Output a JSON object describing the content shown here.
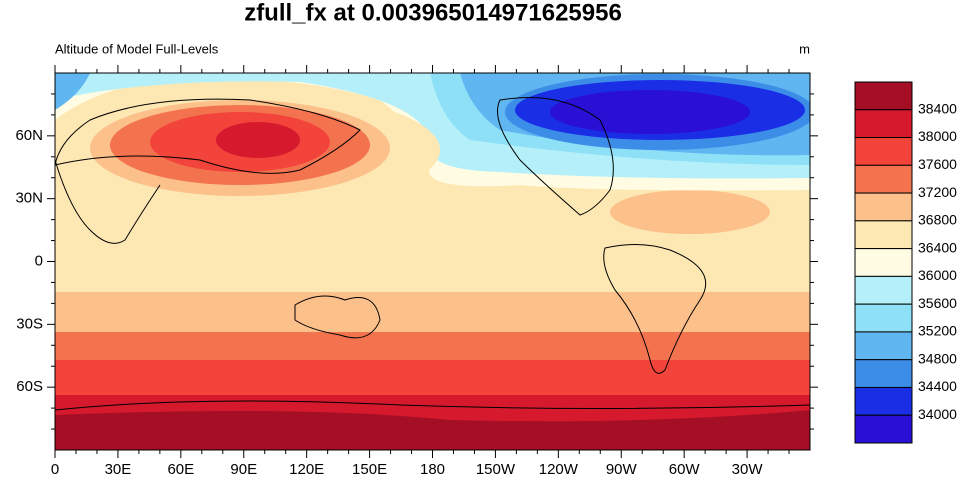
{
  "map": {
    "title": "zfull_fx at 0.003965014971625956",
    "subtitle_left": "Altitude of Model Full-Levels",
    "subtitle_right": "m",
    "x_tick_labels": [
      "0",
      "30E",
      "60E",
      "90E",
      "120E",
      "150E",
      "180",
      "150W",
      "120W",
      "90W",
      "60W",
      "30W"
    ],
    "y_tick_labels": [
      "60N",
      "30N",
      "0",
      "30S",
      "60S"
    ],
    "colorbar": {
      "levels": [
        38400,
        38000,
        37600,
        37200,
        36800,
        36400,
        36000,
        35600,
        35200,
        34800,
        34400,
        34000
      ],
      "colors": [
        "#a50f25",
        "#d7192e",
        "#f2443a",
        "#f4734f",
        "#fcc08b",
        "#fde8b3",
        "#fffce3",
        "#b5f0fa",
        "#8ee0f7",
        "#5fb6f0",
        "#3c8de8",
        "#1a2ee6",
        "#2a10d4"
      ]
    }
  }
}
